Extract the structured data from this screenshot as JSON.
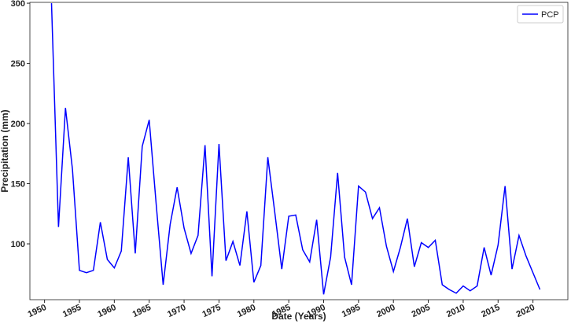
{
  "chart_data": {
    "type": "line",
    "x_label": "Date (Years)",
    "y_label": "Precipitation (mm)",
    "x": [
      1951,
      1952,
      1953,
      1954,
      1955,
      1956,
      1957,
      1958,
      1959,
      1960,
      1961,
      1962,
      1963,
      1964,
      1965,
      1966,
      1967,
      1968,
      1969,
      1970,
      1971,
      1972,
      1973,
      1974,
      1975,
      1976,
      1977,
      1978,
      1979,
      1980,
      1981,
      1982,
      1983,
      1984,
      1985,
      1986,
      1987,
      1988,
      1989,
      1990,
      1991,
      1992,
      1993,
      1994,
      1995,
      1996,
      1997,
      1998,
      1999,
      2000,
      2001,
      2002,
      2003,
      2004,
      2005,
      2006,
      2007,
      2008,
      2009,
      2010,
      2011,
      2012,
      2013,
      2014,
      2015,
      2016,
      2017,
      2018,
      2019,
      2020,
      2021
    ],
    "series": [
      {
        "name": "PCP",
        "color": "#0000ff",
        "values": [
          300,
          114,
          213,
          162,
          78,
          76,
          78,
          118,
          87,
          80,
          94,
          172,
          92,
          181,
          203,
          133,
          66,
          116,
          147,
          113,
          92,
          107,
          182,
          73,
          183,
          86,
          102,
          82,
          127,
          68,
          82,
          172,
          126,
          79,
          123,
          124,
          95,
          85,
          120,
          58,
          89,
          159,
          89,
          66,
          148,
          143,
          121,
          130,
          98,
          77,
          97,
          121,
          81,
          101,
          97,
          103,
          66,
          62,
          59,
          65,
          61,
          65,
          97,
          74,
          99,
          148,
          79,
          107,
          90,
          76,
          62
        ]
      }
    ],
    "xlim": [
      1947.9,
      2025
    ],
    "ylim": [
      53.6,
      300.7
    ],
    "xticks": [
      1950,
      1955,
      1960,
      1965,
      1970,
      1975,
      1980,
      1985,
      1990,
      1995,
      2000,
      2005,
      2010,
      2015,
      2020
    ],
    "yticks": [
      100,
      150,
      200,
      250,
      300
    ],
    "legend": "upper right"
  }
}
